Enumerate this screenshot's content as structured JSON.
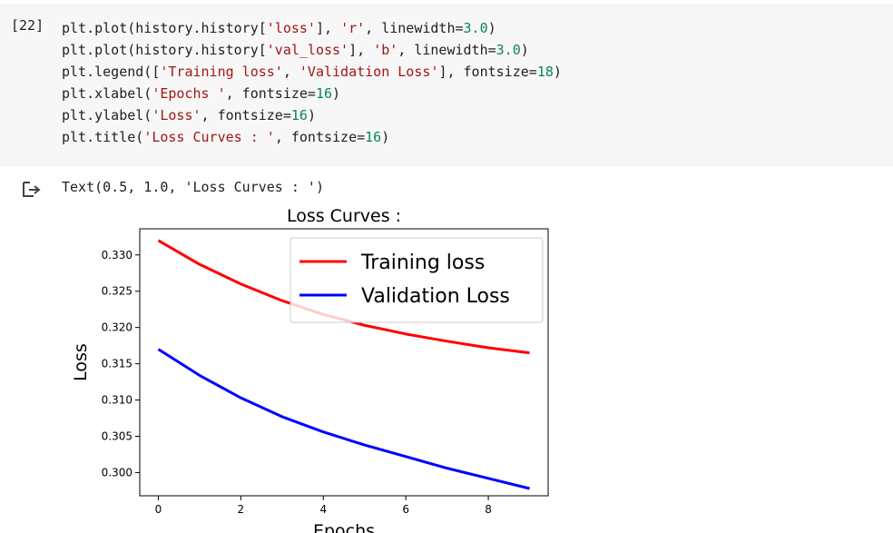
{
  "cell": {
    "execution_count": "[22]",
    "code_lines": [
      [
        {
          "t": "plt.plot(history.history["
        },
        {
          "t": "'loss'",
          "c": "str"
        },
        {
          "t": "], "
        },
        {
          "t": "'r'",
          "c": "str"
        },
        {
          "t": ", linewidth="
        },
        {
          "t": "3.0",
          "c": "num"
        },
        {
          "t": ")"
        }
      ],
      [
        {
          "t": "plt.plot(history.history["
        },
        {
          "t": "'val_loss'",
          "c": "str"
        },
        {
          "t": "], "
        },
        {
          "t": "'b'",
          "c": "str"
        },
        {
          "t": ", linewidth="
        },
        {
          "t": "3.0",
          "c": "num"
        },
        {
          "t": ")"
        }
      ],
      [
        {
          "t": "plt.legend(["
        },
        {
          "t": "'Training loss'",
          "c": "str"
        },
        {
          "t": ", "
        },
        {
          "t": "'Validation Loss'",
          "c": "str"
        },
        {
          "t": "], fontsize="
        },
        {
          "t": "18",
          "c": "num"
        },
        {
          "t": ")"
        }
      ],
      [
        {
          "t": "plt.xlabel("
        },
        {
          "t": "'Epochs '",
          "c": "str"
        },
        {
          "t": ", fontsize="
        },
        {
          "t": "16",
          "c": "num"
        },
        {
          "t": ")"
        }
      ],
      [
        {
          "t": "plt.ylabel("
        },
        {
          "t": "'Loss'",
          "c": "str"
        },
        {
          "t": ", fontsize="
        },
        {
          "t": "16",
          "c": "num"
        },
        {
          "t": ")"
        }
      ],
      [
        {
          "t": "plt.title("
        },
        {
          "t": "'Loss Curves : '",
          "c": "str"
        },
        {
          "t": ", fontsize="
        },
        {
          "t": "16",
          "c": "num"
        },
        {
          "t": ")"
        }
      ]
    ]
  },
  "output": {
    "icon": "output-arrow-icon",
    "text": "Text(0.5, 1.0, 'Loss Curves : ')"
  },
  "chart_data": {
    "type": "line",
    "title": "Loss Curves :",
    "xlabel": "Epochs",
    "ylabel": "Loss",
    "x": [
      0,
      1,
      2,
      3,
      4,
      5,
      6,
      7,
      8,
      9
    ],
    "series": [
      {
        "name": "Training loss",
        "color": "#ff0000",
        "values": [
          0.332,
          0.3287,
          0.326,
          0.3237,
          0.3218,
          0.3203,
          0.3191,
          0.3181,
          0.3172,
          0.3165
        ]
      },
      {
        "name": "Validation Loss",
        "color": "#0000ff",
        "values": [
          0.317,
          0.3134,
          0.3103,
          0.3077,
          0.3056,
          0.3038,
          0.3022,
          0.3006,
          0.2992,
          0.2978
        ]
      }
    ],
    "xlim": [
      -0.45,
      9.45
    ],
    "ylim": [
      0.2968,
      0.3336
    ],
    "xticks": [
      0,
      2,
      4,
      6,
      8
    ],
    "yticks": [
      0.3,
      0.305,
      0.31,
      0.315,
      0.32,
      0.325,
      0.33
    ],
    "ytick_labels": [
      "0.300",
      "0.305",
      "0.310",
      "0.315",
      "0.320",
      "0.325",
      "0.330"
    ],
    "legend_position": "top-right",
    "grid": false
  }
}
